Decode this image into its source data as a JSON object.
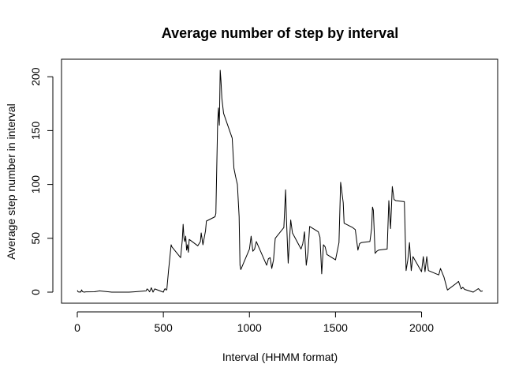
{
  "chart_data": {
    "type": "line",
    "title": "Average number of step by interval",
    "xlabel": "Interval (HHMM format)",
    "ylabel": "Average step number in interval",
    "xlim": [
      0,
      2355
    ],
    "ylim": [
      0,
      206
    ],
    "x_ticks": [
      0,
      500,
      1000,
      1500,
      2000
    ],
    "y_ticks": [
      0,
      50,
      100,
      150,
      200
    ],
    "grid": false,
    "legend": "none",
    "line_color": "#000000",
    "series": [
      {
        "x": [
          0,
          5,
          10,
          15,
          20,
          25,
          30,
          40,
          50,
          100,
          130,
          200,
          230,
          300,
          330,
          400,
          405,
          410,
          420,
          430,
          440,
          450,
          500,
          505,
          510,
          515,
          520,
          530,
          545,
          550,
          600,
          610,
          615,
          620,
          625,
          630,
          635,
          640,
          645,
          650,
          700,
          715,
          720,
          730,
          745,
          750,
          800,
          805,
          815,
          820,
          825,
          830,
          835,
          840,
          850,
          900,
          910,
          920,
          930,
          940,
          945,
          950,
          1000,
          1010,
          1020,
          1030,
          1040,
          1100,
          1110,
          1120,
          1130,
          1140,
          1150,
          1200,
          1210,
          1215,
          1225,
          1240,
          1250,
          1300,
          1310,
          1320,
          1330,
          1340,
          1350,
          1400,
          1410,
          1420,
          1430,
          1440,
          1450,
          1500,
          1520,
          1530,
          1545,
          1550,
          1600,
          1615,
          1630,
          1640,
          1650,
          1700,
          1710,
          1715,
          1720,
          1730,
          1740,
          1750,
          1800,
          1810,
          1820,
          1830,
          1840,
          1850,
          1900,
          1910,
          1920,
          1930,
          1940,
          1950,
          2000,
          2010,
          2020,
          2030,
          2040,
          2100,
          2110,
          2130,
          2140,
          2150,
          2200,
          2215,
          2230,
          2240,
          2250,
          2300,
          2330,
          2345,
          2355
        ],
        "values": [
          1.7,
          0.3,
          0.1,
          0.2,
          0.1,
          2.1,
          0.5,
          0.0,
          0.3,
          0.4,
          1.2,
          0.0,
          0.0,
          0.0,
          0.3,
          1.2,
          3.0,
          2.6,
          0.3,
          4.1,
          0.0,
          3.0,
          0.0,
          2.0,
          3.3,
          2.1,
          2.2,
          20.0,
          44.0,
          42.0,
          32.0,
          48.0,
          63.0,
          50.0,
          47.0,
          52.0,
          39.0,
          44.0,
          37.0,
          49.0,
          43.0,
          47.0,
          55.0,
          44.0,
          57.0,
          66.0,
          70.0,
          73.0,
          156.0,
          171.0,
          155.0,
          206.0,
          196.0,
          180.0,
          166.0,
          143.0,
          115.0,
          107.0,
          100.0,
          70.0,
          25.0,
          21.0,
          40.0,
          52.0,
          38.0,
          40.0,
          47.0,
          25.0,
          31.0,
          32.0,
          22.0,
          30.0,
          50.0,
          60.0,
          95.0,
          68.0,
          27.0,
          67.0,
          55.0,
          40.0,
          45.0,
          56.0,
          25.0,
          37.0,
          61.0,
          56.0,
          51.0,
          17.0,
          44.0,
          42.0,
          35.0,
          30.0,
          46.0,
          102.0,
          83.0,
          64.0,
          60.0,
          58.0,
          39.0,
          45.0,
          46.0,
          47.0,
          59.0,
          79.0,
          76.0,
          36.0,
          38.0,
          39.0,
          40.0,
          85.0,
          59.0,
          98.0,
          86.0,
          85.0,
          84.0,
          20.0,
          30.0,
          46.0,
          20.0,
          33.0,
          19.0,
          33.0,
          19.0,
          33.0,
          20.0,
          16.0,
          22.0,
          14.0,
          8.0,
          2.0,
          8.0,
          10.0,
          3.0,
          4.5,
          2.6,
          0.0,
          3.3,
          0.7,
          1.1
        ]
      }
    ]
  }
}
